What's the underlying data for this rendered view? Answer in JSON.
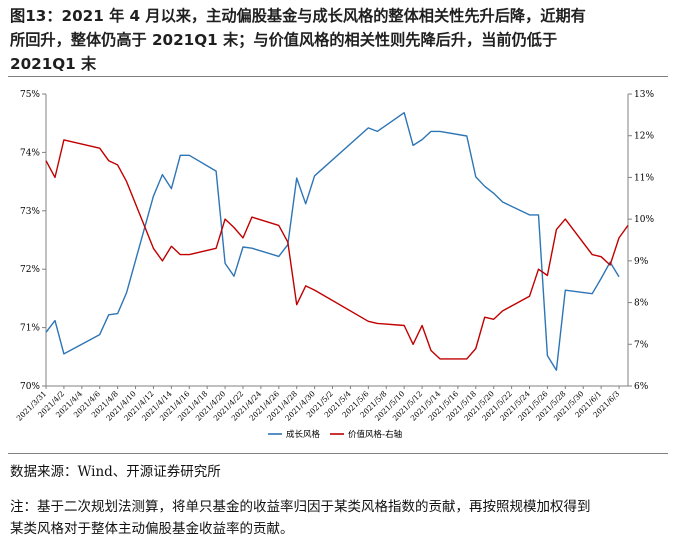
{
  "title_lines": [
    "图13：2021 年 4 月以来，主动偏股基金与成长风格的整体相关性先升后降，近期有",
    "所回升，整体仍高于 2021Q1 末；与价值风格的相关性则先降后升，当前仍低于",
    "2021Q1 末"
  ],
  "source": "数据来源：Wind、开源证券研究所",
  "note_lines": [
    "注：基于二次规划法测算，将单只基金的收益率归因于某类风格指数的贡献，再按照规模加权得到",
    "某类风格对于整体主动偏股基金收益率的贡献。"
  ],
  "colors": {
    "growth": "#2e75b6",
    "value": "#c00000",
    "axis": "#808080"
  },
  "chart_data": {
    "type": "line",
    "x": [
      "2021/3/31",
      "2021/4/1",
      "2021/4/2",
      "2021/4/6",
      "2021/4/7",
      "2021/4/8",
      "2021/4/9",
      "2021/4/12",
      "2021/4/13",
      "2021/4/14",
      "2021/4/15",
      "2021/4/16",
      "2021/4/19",
      "2021/4/20",
      "2021/4/21",
      "2021/4/22",
      "2021/4/23",
      "2021/4/26",
      "2021/4/27",
      "2021/4/28",
      "2021/4/29",
      "2021/4/30",
      "2021/5/6",
      "2021/5/7",
      "2021/5/10",
      "2021/5/11",
      "2021/5/12",
      "2021/5/13",
      "2021/5/14",
      "2021/5/17",
      "2021/5/18",
      "2021/5/19",
      "2021/5/20",
      "2021/5/21",
      "2021/5/24",
      "2021/5/25",
      "2021/5/26",
      "2021/5/27",
      "2021/5/28",
      "2021/5/31",
      "2021/6/1",
      "2021/6/2",
      "2021/6/3",
      "2021/6/4"
    ],
    "x_tick_labels": [
      "2021/3/31",
      "2021/4/2",
      "2021/4/4",
      "2021/4/6",
      "2021/4/8",
      "2021/4/10",
      "2021/4/12",
      "2021/4/14",
      "2021/4/16",
      "2021/4/18",
      "2021/4/20",
      "2021/4/22",
      "2021/4/24",
      "2021/4/26",
      "2021/4/28",
      "2021/4/30",
      "2021/5/2",
      "2021/5/4",
      "2021/5/6",
      "2021/5/8",
      "2021/5/10",
      "2021/5/12",
      "2021/5/14",
      "2021/5/16",
      "2021/5/18",
      "2021/5/20",
      "2021/5/22",
      "2021/5/24",
      "2021/5/26",
      "2021/5/28",
      "2021/5/30",
      "2021/6/1",
      "2021/6/3"
    ],
    "series": [
      {
        "name": "成长风格",
        "axis": "left",
        "values": [
          70.92,
          71.12,
          70.55,
          70.88,
          71.22,
          71.24,
          71.6,
          73.25,
          73.62,
          73.38,
          73.95,
          73.95,
          73.68,
          72.1,
          71.88,
          72.38,
          72.36,
          72.22,
          72.42,
          73.56,
          73.12,
          73.6,
          74.42,
          74.36,
          74.68,
          74.12,
          74.22,
          74.36,
          74.36,
          74.28,
          73.58,
          73.42,
          73.3,
          73.15,
          72.93,
          72.93,
          70.52,
          70.27,
          71.64,
          71.58,
          71.84,
          72.12,
          71.87,
          null
        ]
      },
      {
        "name": "价值风格-右轴",
        "axis": "right",
        "values": [
          11.4,
          11.0,
          11.9,
          11.7,
          11.4,
          11.3,
          10.9,
          9.3,
          9.0,
          9.35,
          9.15,
          9.15,
          9.3,
          10.0,
          9.8,
          9.55,
          10.05,
          9.85,
          9.45,
          7.95,
          8.4,
          8.3,
          7.55,
          7.5,
          7.45,
          7.0,
          7.45,
          6.85,
          6.65,
          6.65,
          6.9,
          7.65,
          7.6,
          7.8,
          8.15,
          8.8,
          8.65,
          9.75,
          10.0,
          9.15,
          9.1,
          8.9,
          9.55,
          9.85
        ]
      }
    ],
    "y_left": {
      "min": 70,
      "max": 75,
      "ticks": [
        "70%",
        "71%",
        "72%",
        "73%",
        "74%",
        "75%"
      ]
    },
    "y_right": {
      "min": 6,
      "max": 13,
      "ticks": [
        "6%",
        "7%",
        "8%",
        "9%",
        "10%",
        "11%",
        "12%",
        "13%"
      ]
    },
    "legend_position": "bottom",
    "grid": false
  }
}
